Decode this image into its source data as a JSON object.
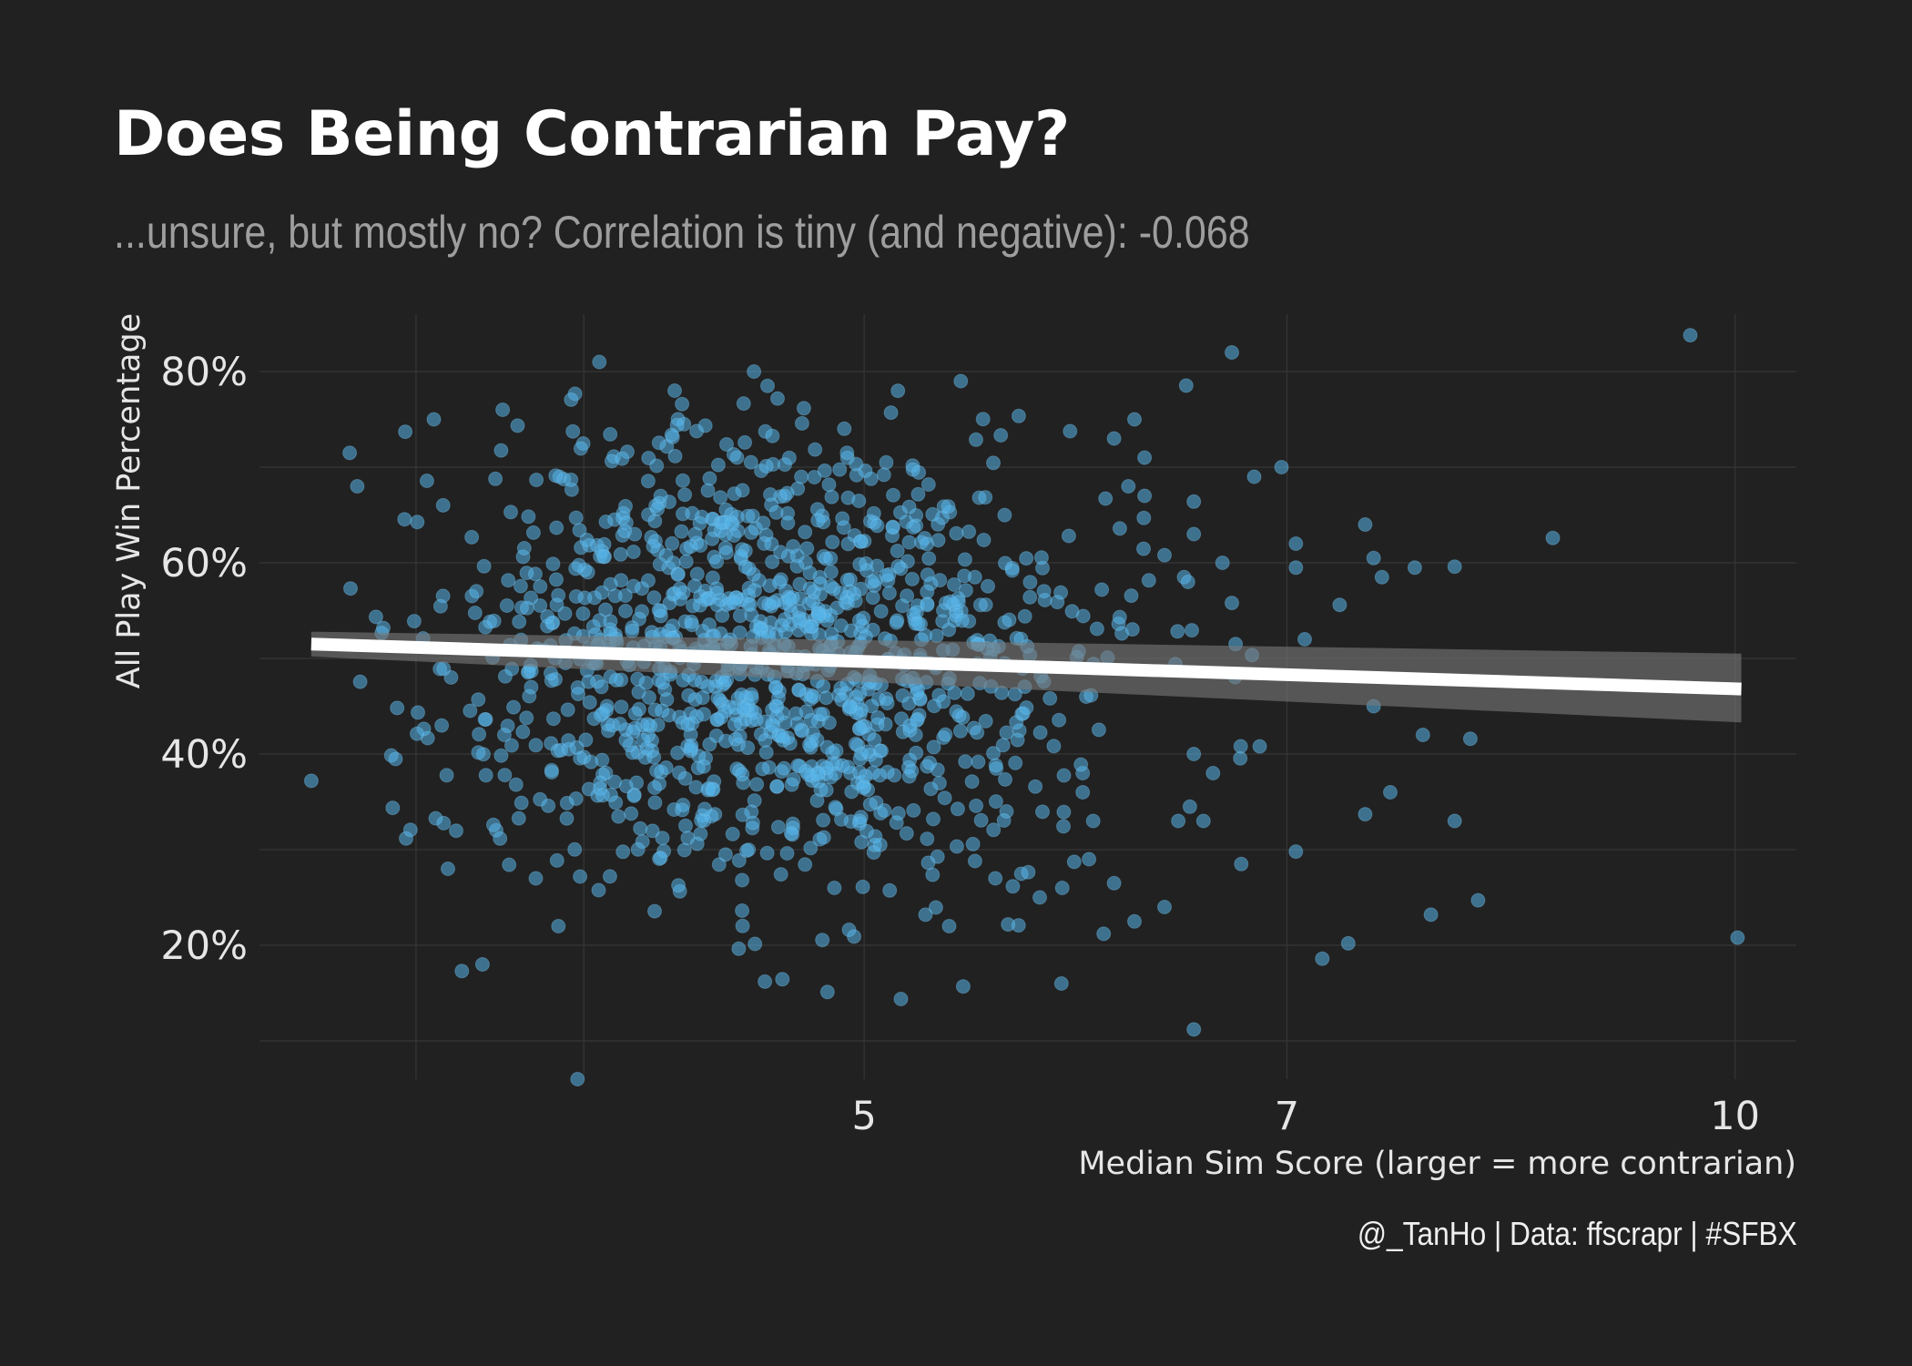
{
  "chart_data": {
    "type": "scatter",
    "title": "Does Being Contrarian Pay?",
    "subtitle": "...unsure, but mostly no? Correlation is tiny (and negative): -0.068",
    "caption": "@_TanHo | Data: ffscrapr | #SFBX",
    "xlabel": "Median Sim Score (larger = more contrarian)",
    "ylabel": "All Play Win Percentage",
    "x_scale": "log",
    "xlim": [
      3.09,
      10.5
    ],
    "ylim": [
      0.06,
      0.86
    ],
    "x_ticks": [
      5,
      7,
      10
    ],
    "x_tick_labels": [
      "5",
      "7",
      "10"
    ],
    "y_ticks": [
      0.2,
      0.4,
      0.6,
      0.8
    ],
    "y_tick_labels": [
      "20%",
      "40%",
      "60%",
      "80%"
    ],
    "x_minor_grid": [
      3.5,
      4,
      5,
      7,
      10
    ],
    "y_minor_grid": [
      0.1,
      0.3,
      0.5,
      0.7
    ],
    "grid": true,
    "point_color": "#56b4e9",
    "trend_line": {
      "method": "lm",
      "color": "#ffffff",
      "x": [
        3.22,
        10.05
      ],
      "y": [
        0.515,
        0.468
      ],
      "ci_lower": [
        0.502,
        0.433
      ],
      "ci_upper": [
        0.528,
        0.505
      ]
    },
    "series": [
      {
        "points": [
          [
            3.22,
            0.372
          ],
          [
            3.32,
            0.715
          ],
          [
            3.34,
            0.68
          ],
          [
            3.47,
            0.737
          ],
          [
            3.63,
            0.173
          ],
          [
            3.69,
            0.18
          ],
          [
            3.59,
            0.28
          ],
          [
            3.98,
            0.06
          ],
          [
            3.92,
            0.22
          ],
          [
            3.85,
            0.27
          ],
          [
            3.55,
            0.75
          ],
          [
            3.75,
            0.76
          ],
          [
            4.05,
            0.81
          ],
          [
            4.3,
            0.78
          ],
          [
            4.58,
            0.8
          ],
          [
            4.63,
            0.785
          ],
          [
            4.62,
            0.162
          ],
          [
            5.4,
            0.79
          ],
          [
            5.41,
            0.157
          ],
          [
            6.7,
            0.82
          ],
          [
            9.65,
            0.838
          ],
          [
            10.02,
            0.208
          ],
          [
            6.5,
            0.112
          ],
          [
            5.85,
            0.16
          ],
          [
            7.2,
            0.186
          ],
          [
            7.35,
            0.202
          ],
          [
            7.85,
            0.232
          ],
          [
            8.15,
            0.247
          ],
          [
            8.0,
            0.33
          ],
          [
            8.1,
            0.416
          ],
          [
            7.6,
            0.36
          ],
          [
            7.45,
            0.337
          ],
          [
            7.8,
            0.42
          ],
          [
            7.5,
            0.45
          ],
          [
            7.5,
            0.605
          ],
          [
            7.55,
            0.585
          ],
          [
            7.45,
            0.64
          ],
          [
            7.3,
            0.556
          ],
          [
            7.1,
            0.52
          ],
          [
            7.05,
            0.62
          ],
          [
            7.05,
            0.595
          ],
          [
            7.05,
            0.298
          ],
          [
            6.85,
            0.408
          ],
          [
            6.75,
            0.285
          ],
          [
            6.97,
            0.7
          ],
          [
            6.82,
            0.69
          ],
          [
            6.7,
            0.558
          ],
          [
            6.72,
            0.515
          ],
          [
            6.65,
            0.6
          ],
          [
            6.5,
            0.63
          ],
          [
            6.45,
            0.585
          ],
          [
            6.35,
            0.608
          ],
          [
            6.25,
            0.67
          ],
          [
            8.65,
            0.626
          ],
          [
            8.0,
            0.596
          ],
          [
            7.75,
            0.595
          ],
          [
            6.17,
            0.68
          ],
          [
            6.2,
            0.75
          ],
          [
            6.25,
            0.71
          ],
          [
            6.5,
            0.664
          ],
          [
            6.1,
            0.73
          ],
          [
            5.95,
            0.38
          ],
          [
            6.0,
            0.33
          ],
          [
            5.98,
            0.29
          ],
          [
            5.75,
            0.25
          ],
          [
            6.55,
            0.33
          ],
          [
            6.42,
            0.33
          ],
          [
            6.47,
            0.58
          ],
          [
            6.35,
            0.24
          ],
          [
            6.2,
            0.225
          ],
          [
            6.05,
            0.212
          ],
          [
            5.95,
            0.36
          ],
          [
            6.6,
            0.38
          ],
          [
            6.5,
            0.4
          ],
          [
            6.48,
            0.345
          ],
          [
            6.1,
            0.265
          ],
          [
            5.6,
            0.34
          ],
          [
            5.55,
            0.27
          ],
          [
            5.35,
            0.22
          ],
          [
            5.25,
            0.232
          ]
        ]
      }
    ],
    "cloud_generation": {
      "count": 1250,
      "x_center_log": 1.53,
      "x_spread_log": 0.13,
      "y_center": 0.497,
      "y_spread": 0.118,
      "seed": 20230617
    }
  }
}
